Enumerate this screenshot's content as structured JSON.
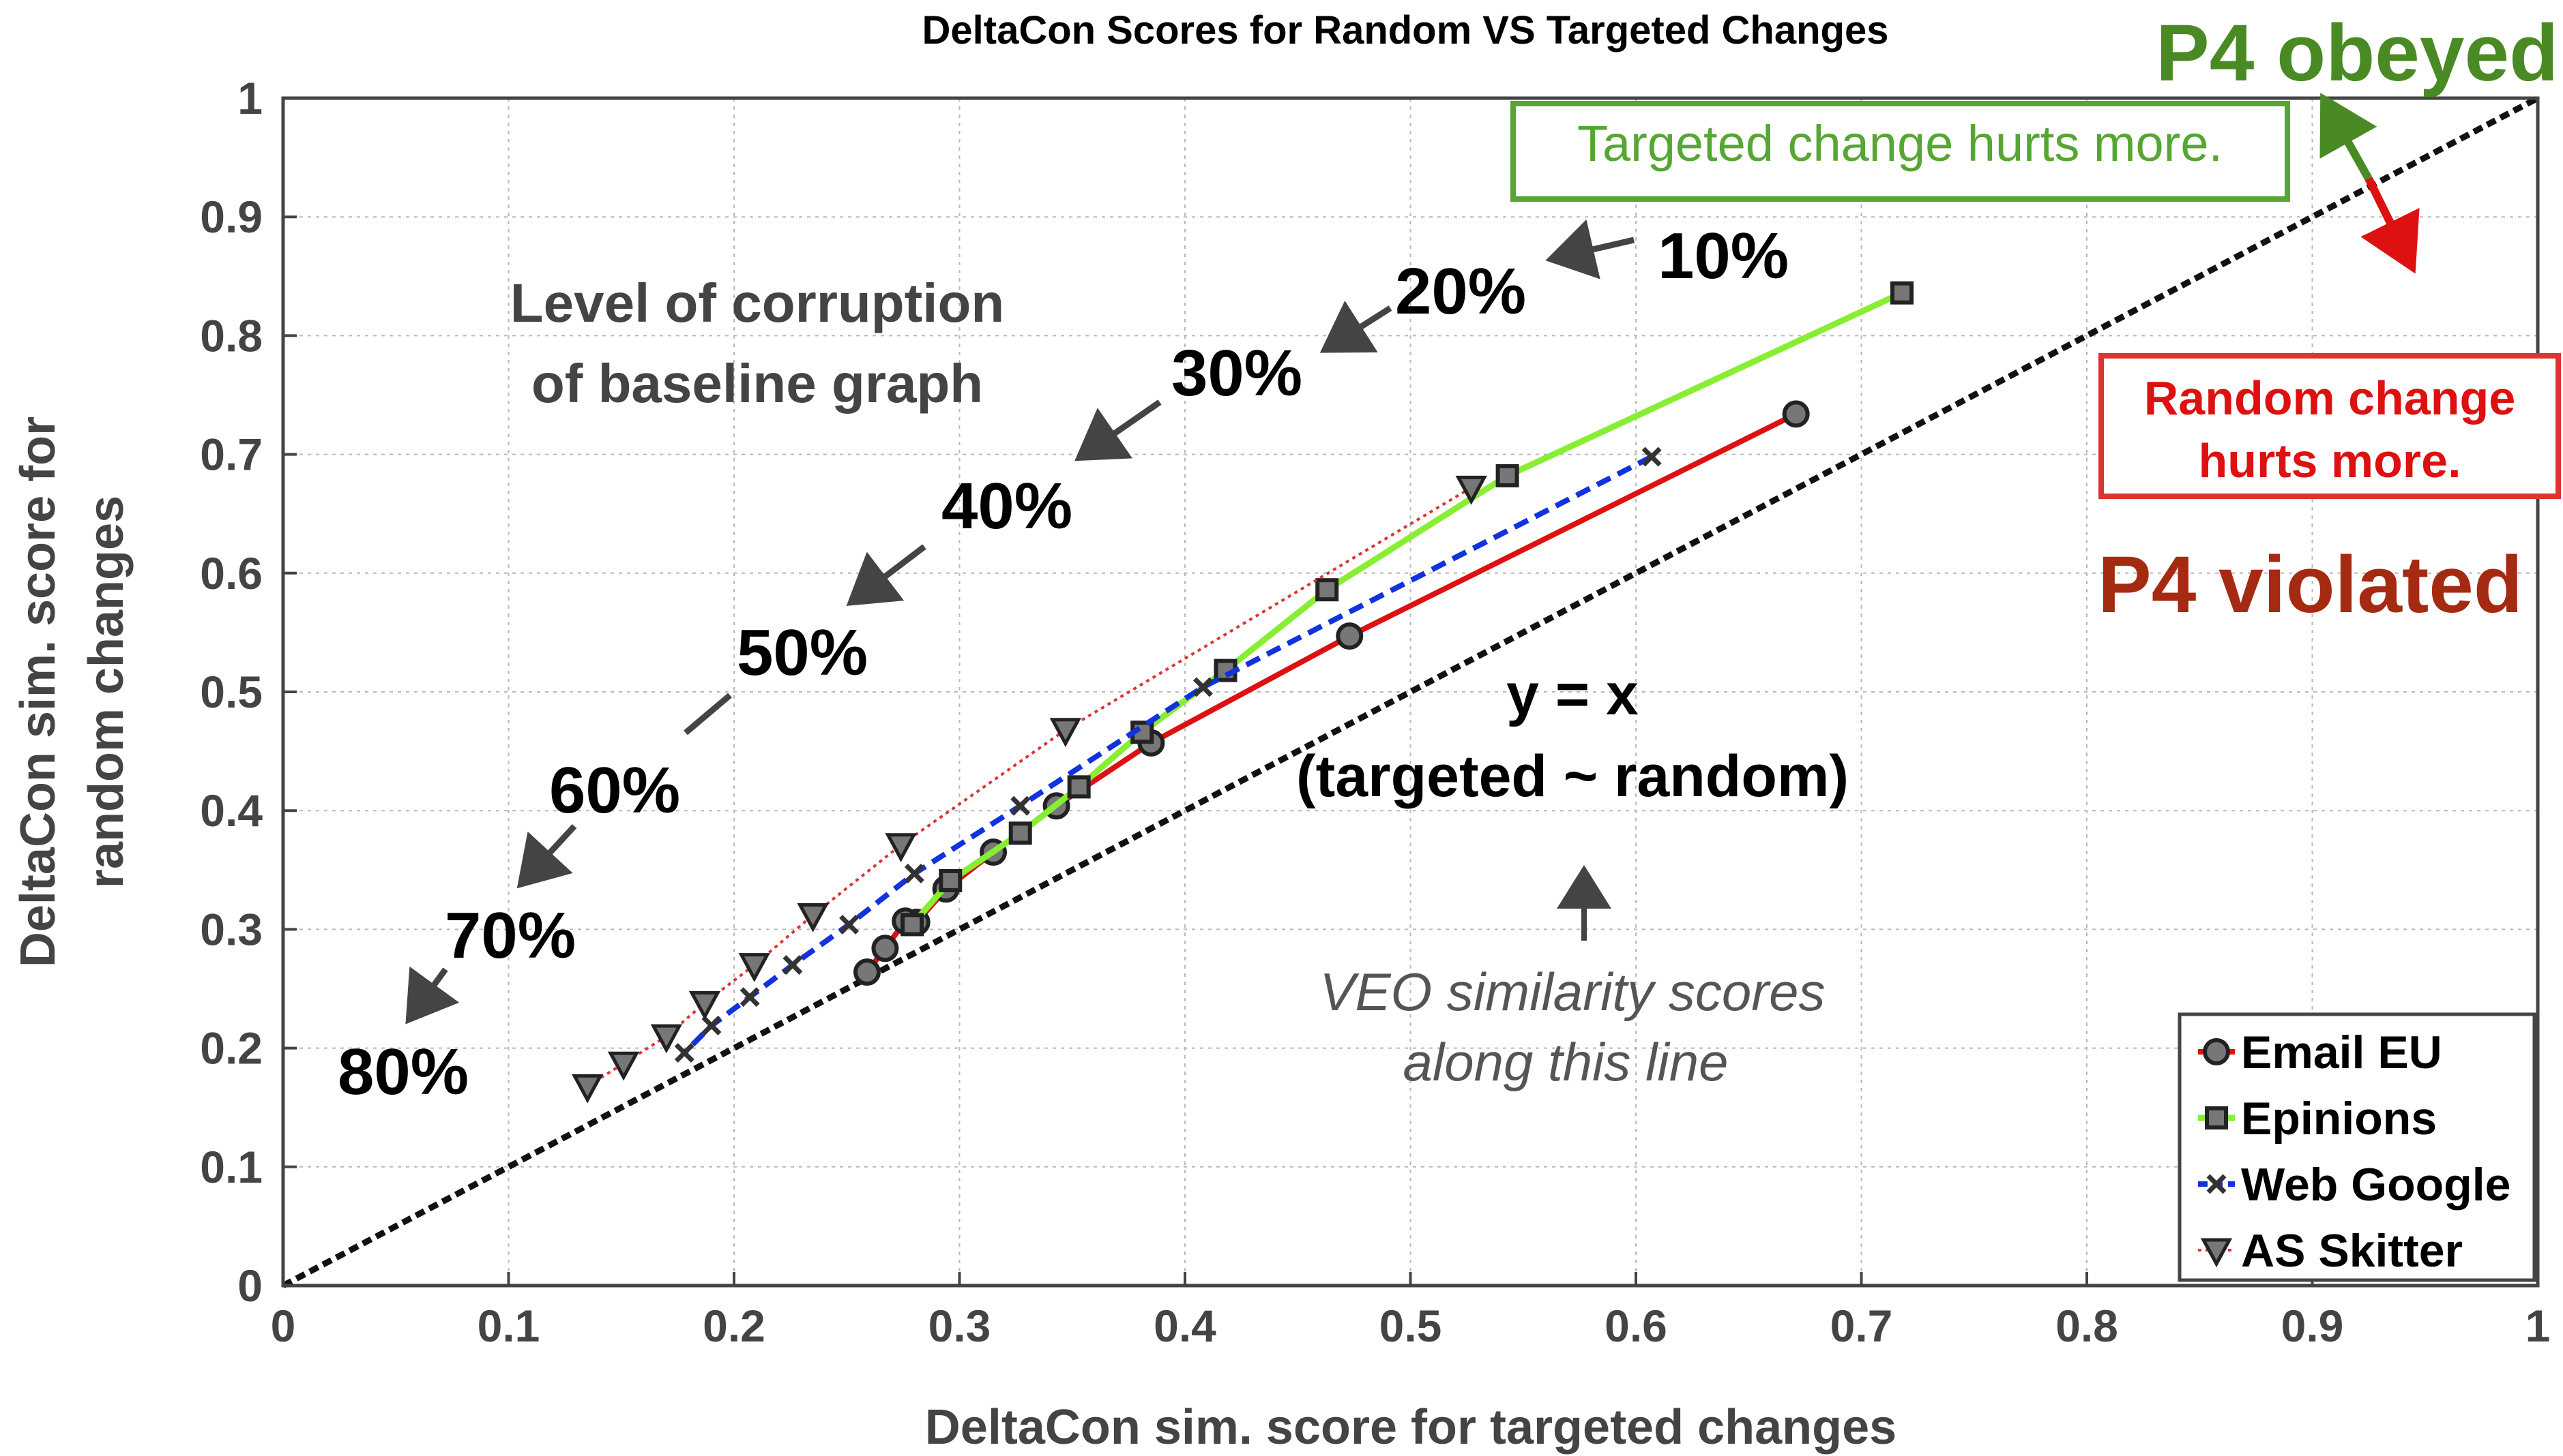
{
  "chart_data": {
    "type": "line",
    "title": "DeltaCon Scores for Random VS Targeted Changes",
    "xlabel": "DeltaCon sim. score for targeted changes",
    "ylabel_line1": "DeltaCon sim. score for",
    "ylabel_line2": "random changes",
    "xlim": [
      0,
      1
    ],
    "ylim": [
      0,
      1
    ],
    "x_ticks": [
      "0",
      "0.1",
      "0.2",
      "0.3",
      "0.4",
      "0.5",
      "0.6",
      "0.7",
      "0.8",
      "0.9",
      "1"
    ],
    "y_ticks": [
      "0",
      "0.1",
      "0.2",
      "0.3",
      "0.4",
      "0.5",
      "0.6",
      "0.7",
      "0.8",
      "0.9",
      "1"
    ],
    "grid": true,
    "legend_position": "bottom-right",
    "series": [
      {
        "name": "Email EU",
        "color": "#dd1111",
        "marker": "circle",
        "points": [
          [
            0.671,
            0.734
          ],
          [
            0.473,
            0.547
          ],
          [
            0.385,
            0.457
          ],
          [
            0.343,
            0.404
          ],
          [
            0.315,
            0.365
          ],
          [
            0.294,
            0.334
          ],
          [
            0.281,
            0.306
          ],
          [
            0.276,
            0.307
          ],
          [
            0.267,
            0.284
          ],
          [
            0.259,
            0.264
          ]
        ]
      },
      {
        "name": "Epinions",
        "color": "#88ee33",
        "marker": "square",
        "points": [
          [
            0.718,
            0.836
          ],
          [
            0.543,
            0.682
          ],
          [
            0.463,
            0.586
          ],
          [
            0.418,
            0.518
          ],
          [
            0.381,
            0.466
          ],
          [
            0.353,
            0.42
          ],
          [
            0.327,
            0.381
          ],
          [
            0.296,
            0.341
          ],
          [
            0.279,
            0.304
          ]
        ]
      },
      {
        "name": "Web Google",
        "color": "#1133dd",
        "marker": "x",
        "points": [
          [
            0.607,
            0.698
          ],
          [
            0.408,
            0.504
          ],
          [
            0.327,
            0.404
          ],
          [
            0.28,
            0.347
          ],
          [
            0.251,
            0.304
          ],
          [
            0.226,
            0.27
          ],
          [
            0.207,
            0.243
          ],
          [
            0.19,
            0.219
          ],
          [
            0.178,
            0.196
          ]
        ]
      },
      {
        "name": "AS Skitter",
        "color": "#dd3333",
        "marker": "triangle",
        "points": [
          [
            0.527,
            0.672
          ],
          [
            0.347,
            0.468
          ],
          [
            0.274,
            0.371
          ],
          [
            0.235,
            0.312
          ],
          [
            0.209,
            0.27
          ],
          [
            0.187,
            0.238
          ],
          [
            0.17,
            0.21
          ],
          [
            0.151,
            0.187
          ],
          [
            0.135,
            0.168
          ]
        ]
      }
    ],
    "reference_line": {
      "label": "y = x",
      "sublabel": "(targeted ~ random)"
    },
    "annotations": {
      "corruption_line1": "Level of corruption",
      "corruption_line2": "of baseline graph",
      "pct_labels": [
        "10%",
        "20%",
        "30%",
        "40%",
        "50%",
        "60%",
        "70%",
        "80%"
      ],
      "veo_line1": "VEO similarity scores",
      "veo_line2": "along this line",
      "targeted_box": "Targeted change hurts more.",
      "random_box_line1": "Random change",
      "random_box_line2": "hurts more.",
      "p4_obeyed": "P4 obeyed",
      "p4_violated": "P4 violated"
    },
    "colors": {
      "axis": "#444444",
      "grid": "#b8b8b8",
      "obeyed": "#4a8a25",
      "violated": "#a52a12",
      "targeted_box": "#55a633",
      "random_box": "#dd3333",
      "veo_text": "#555555",
      "annotation_text": "#444444"
    }
  }
}
